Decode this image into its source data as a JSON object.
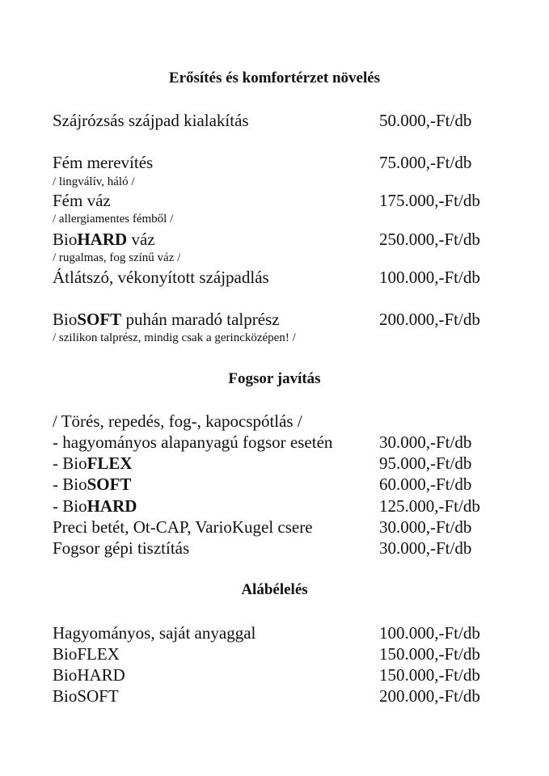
{
  "section1": {
    "title": "Erősítés és komfortérzet növelés",
    "rows": [
      {
        "label": "Szájrózsás szájpad kialakítás",
        "price": "50.000,-Ft/db"
      },
      {
        "label": "Fém merevítés",
        "note": "/ lingválív, háló /",
        "price": "75.000,-Ft/db"
      },
      {
        "label": "Fém váz",
        "note": "/ allergiamentes fémből /",
        "price": "175.000,-Ft/db"
      },
      {
        "pre": "Bio",
        "bold": "HARD",
        "post": " váz",
        "note": "/ rugalmas, fog színű váz /",
        "price": "250.000,-Ft/db"
      },
      {
        "label": "Átlátszó, vékonyított szájpadlás",
        "price": "100.000,-Ft/db"
      },
      {
        "pre": "Bio",
        "bold": "SOFT",
        "post": " puhán maradó talprész",
        "note": "/ szilikon talprész, mindig csak a gerincközépen! /",
        "price": "200.000,-Ft/db"
      }
    ]
  },
  "section2": {
    "title": "Fogsor javítás",
    "intro": "/ Törés, repedés, fog-, kapocspótlás /",
    "rows": [
      {
        "label": "- hagyományos alapanyagú fogsor esetén",
        "price": "30.000,-Ft/db"
      },
      {
        "pre": "- Bio",
        "bold": "FLEX",
        "price": "95.000,-Ft/db"
      },
      {
        "pre": "- Bio",
        "bold": "SOFT",
        "price": "60.000,-Ft/db"
      },
      {
        "pre": "- Bio",
        "bold": "HARD",
        "price": "125.000,-Ft/db"
      },
      {
        "label": "Preci betét, Ot-CAP, VarioKugel csere",
        "price": "30.000,-Ft/db"
      },
      {
        "label": "Fogsor gépi tisztítás",
        "price": "30.000,-Ft/db"
      }
    ]
  },
  "section3": {
    "title": "Alábélelés",
    "rows": [
      {
        "label": "Hagyományos, saját anyaggal",
        "price": "100.000,-Ft/db"
      },
      {
        "label": "BioFLEX",
        "price": "150.000,-Ft/db"
      },
      {
        "label": "BioHARD",
        "price": "150.000,-Ft/db"
      },
      {
        "label": "BioSOFT",
        "price": "200.000,-Ft/db"
      }
    ]
  }
}
